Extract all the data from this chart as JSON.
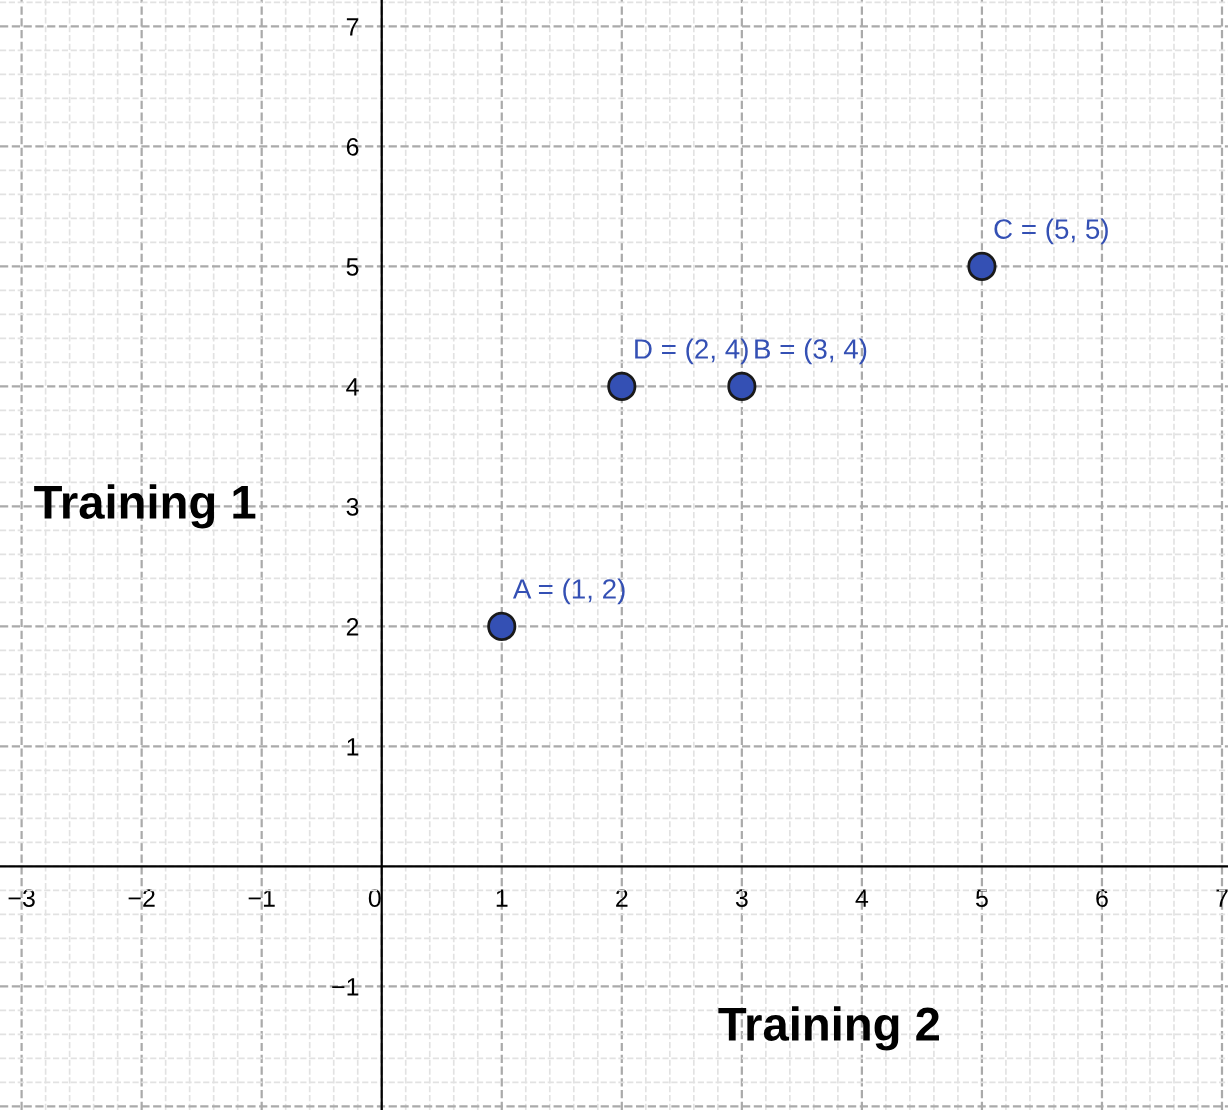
{
  "chart_data": {
    "type": "scatter",
    "xlabel": "Training 2",
    "ylabel": "Training 1",
    "x": [
      1,
      3,
      5,
      2
    ],
    "values": [
      2,
      4,
      5,
      4
    ],
    "color": "#3450b4",
    "marker": "circle",
    "annotations": [
      {
        "text": "A = (1, 2)",
        "x": 1,
        "y": 2
      },
      {
        "text": "B = (3, 4)",
        "x": 3,
        "y": 4
      },
      {
        "text": "C = (5, 5)",
        "x": 5,
        "y": 5
      },
      {
        "text": "D = (2, 4)",
        "x": 2,
        "y": 4
      }
    ],
    "xlim": [
      -3.18,
      7.05
    ],
    "ylim": [
      -2.03,
      7.22
    ],
    "xticks": [
      -3,
      -2,
      -1,
      0,
      1,
      2,
      3,
      4,
      5,
      6,
      7
    ],
    "yticks": [
      {
        "value": -2,
        "label": null
      },
      -1,
      1,
      2,
      3,
      4,
      5,
      6,
      7
    ],
    "grid": true
  }
}
